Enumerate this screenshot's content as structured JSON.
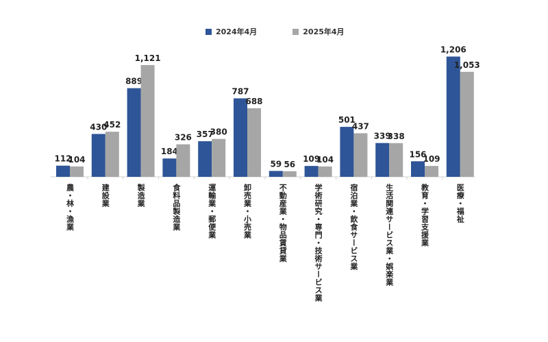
{
  "chart_data": {
    "type": "bar",
    "title": "",
    "xlabel": "",
    "ylabel": "",
    "ylim": [
      0,
      1300
    ],
    "grid": false,
    "legend_position": "top-center",
    "categories": [
      "農・林・漁業",
      "建設業",
      "製造業",
      "食料品製造業",
      "運輸業・郵便業",
      "卸売業・小売業",
      "不動産業・物品賃貸業",
      "学術研究・専門・技術サービス業",
      "宿泊業・飲食サービス業",
      "生活関連サービス業・娯楽業",
      "教育・学習支援業",
      "医療・福祉"
    ],
    "series": [
      {
        "name": "2024年4月",
        "color": "#2E5597",
        "values": [
          112,
          430,
          889,
          184,
          357,
          787,
          59,
          109,
          501,
          339,
          156,
          1206
        ],
        "labels": [
          "112",
          "430",
          "889",
          "184",
          "357",
          "787",
          "59",
          "109",
          "501",
          "339",
          "156",
          "1,206"
        ]
      },
      {
        "name": "2025年4月",
        "color": "#A6A6A6",
        "values": [
          104,
          452,
          1121,
          326,
          380,
          688,
          56,
          104,
          437,
          338,
          109,
          1053
        ],
        "labels": [
          "104",
          "452",
          "1,121",
          "326",
          "380",
          "688",
          "56",
          "104",
          "437",
          "338",
          "109",
          "1,053"
        ]
      }
    ]
  }
}
